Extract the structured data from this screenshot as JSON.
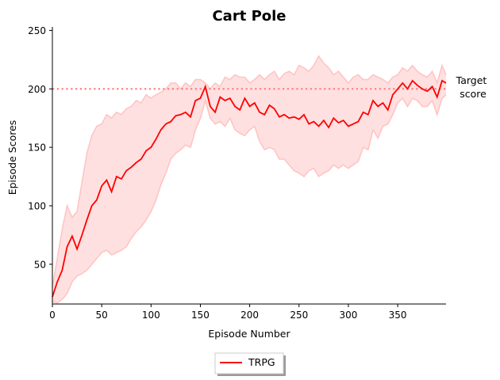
{
  "chart_data": {
    "type": "line",
    "title": "Cart Pole",
    "xlabel": "Episode Number",
    "ylabel": "Episode Scores",
    "xlim": [
      0,
      399
    ],
    "ylim": [
      16,
      253
    ],
    "xticks": [
      0,
      50,
      100,
      150,
      200,
      250,
      300,
      350
    ],
    "yticks": [
      50,
      100,
      150,
      200,
      250
    ],
    "grid": false,
    "legend_position": "bottom-center",
    "target": {
      "value": 200,
      "label_line1": "Target",
      "label_line2": "score",
      "color": "#ff8080"
    },
    "series": [
      {
        "name": "TRPG",
        "color": "#ff0000",
        "band_fill": "#ffe0e0",
        "band_edge": "#ffc4c4",
        "x": [
          0,
          5,
          10,
          15,
          20,
          25,
          30,
          35,
          40,
          45,
          50,
          55,
          60,
          65,
          70,
          75,
          80,
          85,
          90,
          95,
          100,
          105,
          110,
          115,
          120,
          125,
          130,
          135,
          140,
          145,
          150,
          155,
          160,
          165,
          170,
          175,
          180,
          185,
          190,
          195,
          200,
          205,
          210,
          215,
          220,
          225,
          230,
          235,
          240,
          245,
          250,
          255,
          260,
          265,
          270,
          275,
          280,
          285,
          290,
          295,
          300,
          305,
          310,
          315,
          320,
          325,
          330,
          335,
          340,
          345,
          350,
          355,
          360,
          365,
          370,
          375,
          380,
          385,
          390,
          395,
          399
        ],
        "mean": [
          22,
          35,
          45,
          65,
          74,
          63,
          75,
          88,
          100,
          105,
          117,
          122,
          112,
          125,
          123,
          130,
          133,
          137,
          140,
          147,
          150,
          157,
          165,
          170,
          172,
          177,
          178,
          180,
          176,
          190,
          192,
          202,
          185,
          180,
          193,
          190,
          192,
          185,
          182,
          192,
          185,
          188,
          180,
          178,
          186,
          183,
          176,
          178,
          175,
          176,
          174,
          178,
          170,
          172,
          168,
          173,
          167,
          175,
          171,
          173,
          168,
          170,
          172,
          180,
          178,
          190,
          185,
          188,
          182,
          195,
          200,
          205,
          200,
          207,
          203,
          200,
          198,
          202,
          193,
          207,
          205
        ],
        "upper": [
          30,
          55,
          80,
          100,
          90,
          95,
          120,
          145,
          160,
          168,
          170,
          178,
          175,
          180,
          178,
          183,
          185,
          190,
          188,
          195,
          192,
          195,
          197,
          200,
          205,
          205,
          200,
          205,
          202,
          208,
          208,
          205,
          200,
          205,
          202,
          210,
          208,
          212,
          210,
          210,
          205,
          208,
          212,
          208,
          212,
          215,
          208,
          213,
          215,
          212,
          220,
          218,
          215,
          220,
          228,
          222,
          218,
          212,
          215,
          210,
          205,
          210,
          212,
          208,
          208,
          212,
          210,
          208,
          205,
          210,
          212,
          218,
          215,
          220,
          215,
          212,
          210,
          215,
          205,
          220,
          212
        ],
        "lower": [
          18,
          17,
          20,
          25,
          35,
          40,
          42,
          45,
          50,
          55,
          60,
          62,
          58,
          60,
          62,
          65,
          72,
          78,
          82,
          88,
          95,
          105,
          118,
          128,
          140,
          145,
          148,
          152,
          150,
          165,
          175,
          190,
          175,
          170,
          172,
          168,
          175,
          165,
          162,
          160,
          165,
          168,
          155,
          148,
          150,
          148,
          140,
          140,
          135,
          130,
          128,
          125,
          130,
          132,
          125,
          128,
          130,
          135,
          132,
          135,
          132,
          135,
          138,
          150,
          148,
          165,
          158,
          168,
          170,
          178,
          188,
          192,
          185,
          192,
          190,
          185,
          185,
          190,
          178,
          192,
          195
        ]
      }
    ]
  }
}
